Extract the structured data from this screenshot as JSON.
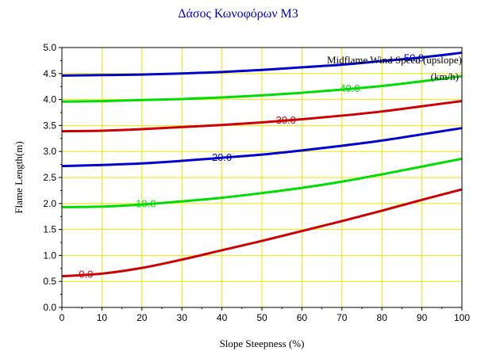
{
  "chart_data": {
    "type": "line",
    "title": "Δάσος Κωνοφόρων Μ3",
    "xlabel": "Slope Steepness (%)",
    "ylabel": "Flame Length(m)",
    "xlim": [
      0,
      100
    ],
    "ylim": [
      0,
      5
    ],
    "x_ticks": [
      "0",
      "10",
      "20",
      "30",
      "40",
      "50",
      "60",
      "70",
      "80",
      "90",
      "100"
    ],
    "y_ticks": [
      "0.0",
      "0.5",
      "1.0",
      "1.5",
      "2.0",
      "2.5",
      "3.0",
      "3.5",
      "4.0",
      "4.5",
      "5.0"
    ],
    "grid": true,
    "grid_color": "#e8e800",
    "legend_title_line1": "Midflame Wind Speed (upslope)",
    "legend_title_line2": "(km/h)",
    "legend_placement": "top-right",
    "x": [
      0,
      10,
      20,
      30,
      40,
      50,
      60,
      70,
      80,
      90,
      100
    ],
    "series": [
      {
        "name": "0.0",
        "color": "#cc0000",
        "values": [
          0.6,
          0.65,
          0.76,
          0.92,
          1.1,
          1.28,
          1.47,
          1.66,
          1.86,
          2.07,
          2.27
        ]
      },
      {
        "name": "10.0",
        "color": "#00dd00",
        "values": [
          1.93,
          1.94,
          1.98,
          2.04,
          2.11,
          2.2,
          2.3,
          2.42,
          2.56,
          2.71,
          2.86
        ]
      },
      {
        "name": "20.0",
        "color": "#0000cc",
        "values": [
          2.72,
          2.74,
          2.77,
          2.82,
          2.88,
          2.94,
          3.02,
          3.11,
          3.21,
          3.33,
          3.45
        ]
      },
      {
        "name": "30.0",
        "color": "#cc0000",
        "values": [
          3.39,
          3.4,
          3.43,
          3.47,
          3.51,
          3.56,
          3.62,
          3.69,
          3.77,
          3.87,
          3.97
        ]
      },
      {
        "name": "40.0",
        "color": "#00dd00",
        "values": [
          3.96,
          3.97,
          3.99,
          4.01,
          4.04,
          4.08,
          4.13,
          4.19,
          4.26,
          4.35,
          4.45
        ]
      },
      {
        "name": "50.0",
        "color": "#0000cc",
        "values": [
          4.46,
          4.47,
          4.48,
          4.5,
          4.53,
          4.57,
          4.62,
          4.67,
          4.74,
          4.81,
          4.9
        ]
      }
    ],
    "series_label_x": [
      6,
      21,
      40,
      56,
      72,
      88
    ]
  }
}
